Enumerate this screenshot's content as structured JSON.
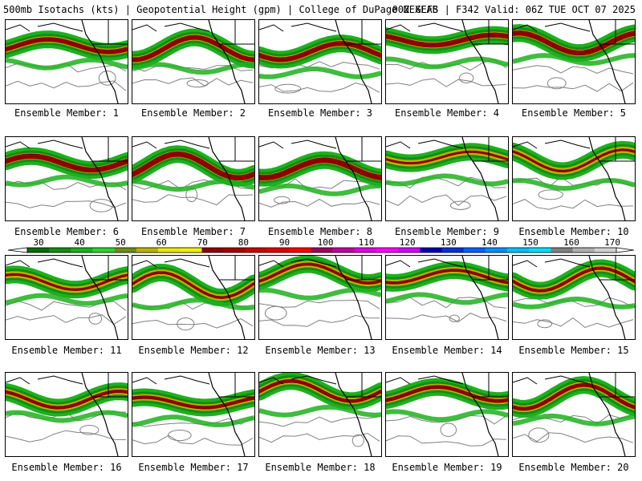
{
  "header": {
    "title_left": "500mb Isotachs (kts) | Geopotential Height (gpm) | College of DuPage NEXLAB",
    "title_right": "00Z GEFS | F342 Valid: 06Z TUE OCT 07 2025"
  },
  "colorbar": {
    "labels": [
      "30",
      "40",
      "50",
      "60",
      "70",
      "80",
      "90",
      "100",
      "110",
      "120",
      "130",
      "140",
      "150",
      "160",
      "170"
    ],
    "colors": [
      "#0a6a0a",
      "#138c13",
      "#1eb01e",
      "#30d030",
      "#6e8c1c",
      "#b8b400",
      "#e8e800",
      "#f0f000",
      "#8c0000",
      "#a80000",
      "#c80000",
      "#e00000",
      "#ff0000",
      "#a00060",
      "#c000a0",
      "#e000e0",
      "#ff00ff",
      "#d000ff",
      "#0000b0",
      "#0030e0",
      "#0060ff",
      "#0090ff",
      "#00c0ff",
      "#00e0ff",
      "#808080",
      "#b0b0b0",
      "#d0d0d0"
    ]
  },
  "panels": [
    {
      "caption": "Ensemble Member: 1"
    },
    {
      "caption": "Ensemble Member: 2"
    },
    {
      "caption": "Ensemble Member: 3"
    },
    {
      "caption": "Ensemble Member: 4"
    },
    {
      "caption": "Ensemble Member: 5"
    },
    {
      "caption": "Ensemble Member: 6"
    },
    {
      "caption": "Ensemble Member: 7"
    },
    {
      "caption": "Ensemble Member: 8"
    },
    {
      "caption": "Ensemble Member: 9"
    },
    {
      "caption": "Ensemble Member: 10"
    },
    {
      "caption": "Ensemble Member: 11"
    },
    {
      "caption": "Ensemble Member: 12"
    },
    {
      "caption": "Ensemble Member: 13"
    },
    {
      "caption": "Ensemble Member: 14"
    },
    {
      "caption": "Ensemble Member: 15"
    },
    {
      "caption": "Ensemble Member: 16"
    },
    {
      "caption": "Ensemble Member: 17"
    },
    {
      "caption": "Ensemble Member: 18"
    },
    {
      "caption": "Ensemble Member: 19"
    },
    {
      "caption": "Ensemble Member: 20"
    }
  ],
  "style": {
    "jet_colors": [
      "#1eb01e",
      "#138c13",
      "#b8b400",
      "#8c0000"
    ],
    "contour_color": "#808080",
    "coast_color": "#000000"
  }
}
